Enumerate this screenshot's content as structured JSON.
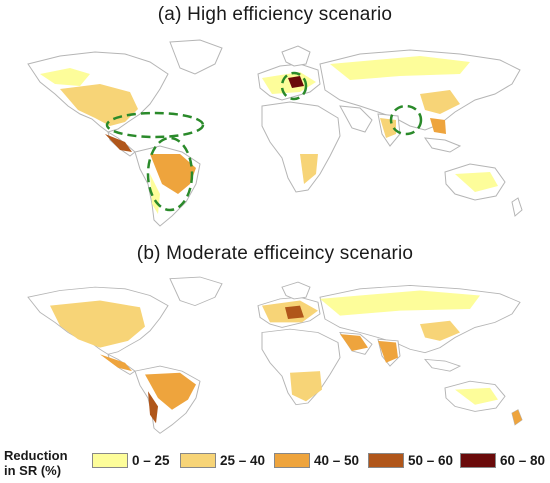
{
  "panels": {
    "a": {
      "title": "(a) High efficiency scenario"
    },
    "b": {
      "title": "(b) Moderate efficeincy scenario"
    }
  },
  "legend": {
    "title_line1": "Reduction",
    "title_line2": "in SR (%)",
    "items": [
      {
        "label": "0 – 25",
        "color": "#fdfd9a"
      },
      {
        "label": "25 – 40",
        "color": "#f7d477"
      },
      {
        "label": "40 – 50",
        "color": "#eea43d"
      },
      {
        "label": "50 – 60",
        "color": "#b0561a"
      },
      {
        "label": "60 – 80",
        "color": "#6a0a0a"
      }
    ]
  },
  "colors": {
    "land_outline": "#b5b5b5",
    "land_fill": "#ffffff",
    "highlight_ellipse": "#2a8a2a"
  }
}
